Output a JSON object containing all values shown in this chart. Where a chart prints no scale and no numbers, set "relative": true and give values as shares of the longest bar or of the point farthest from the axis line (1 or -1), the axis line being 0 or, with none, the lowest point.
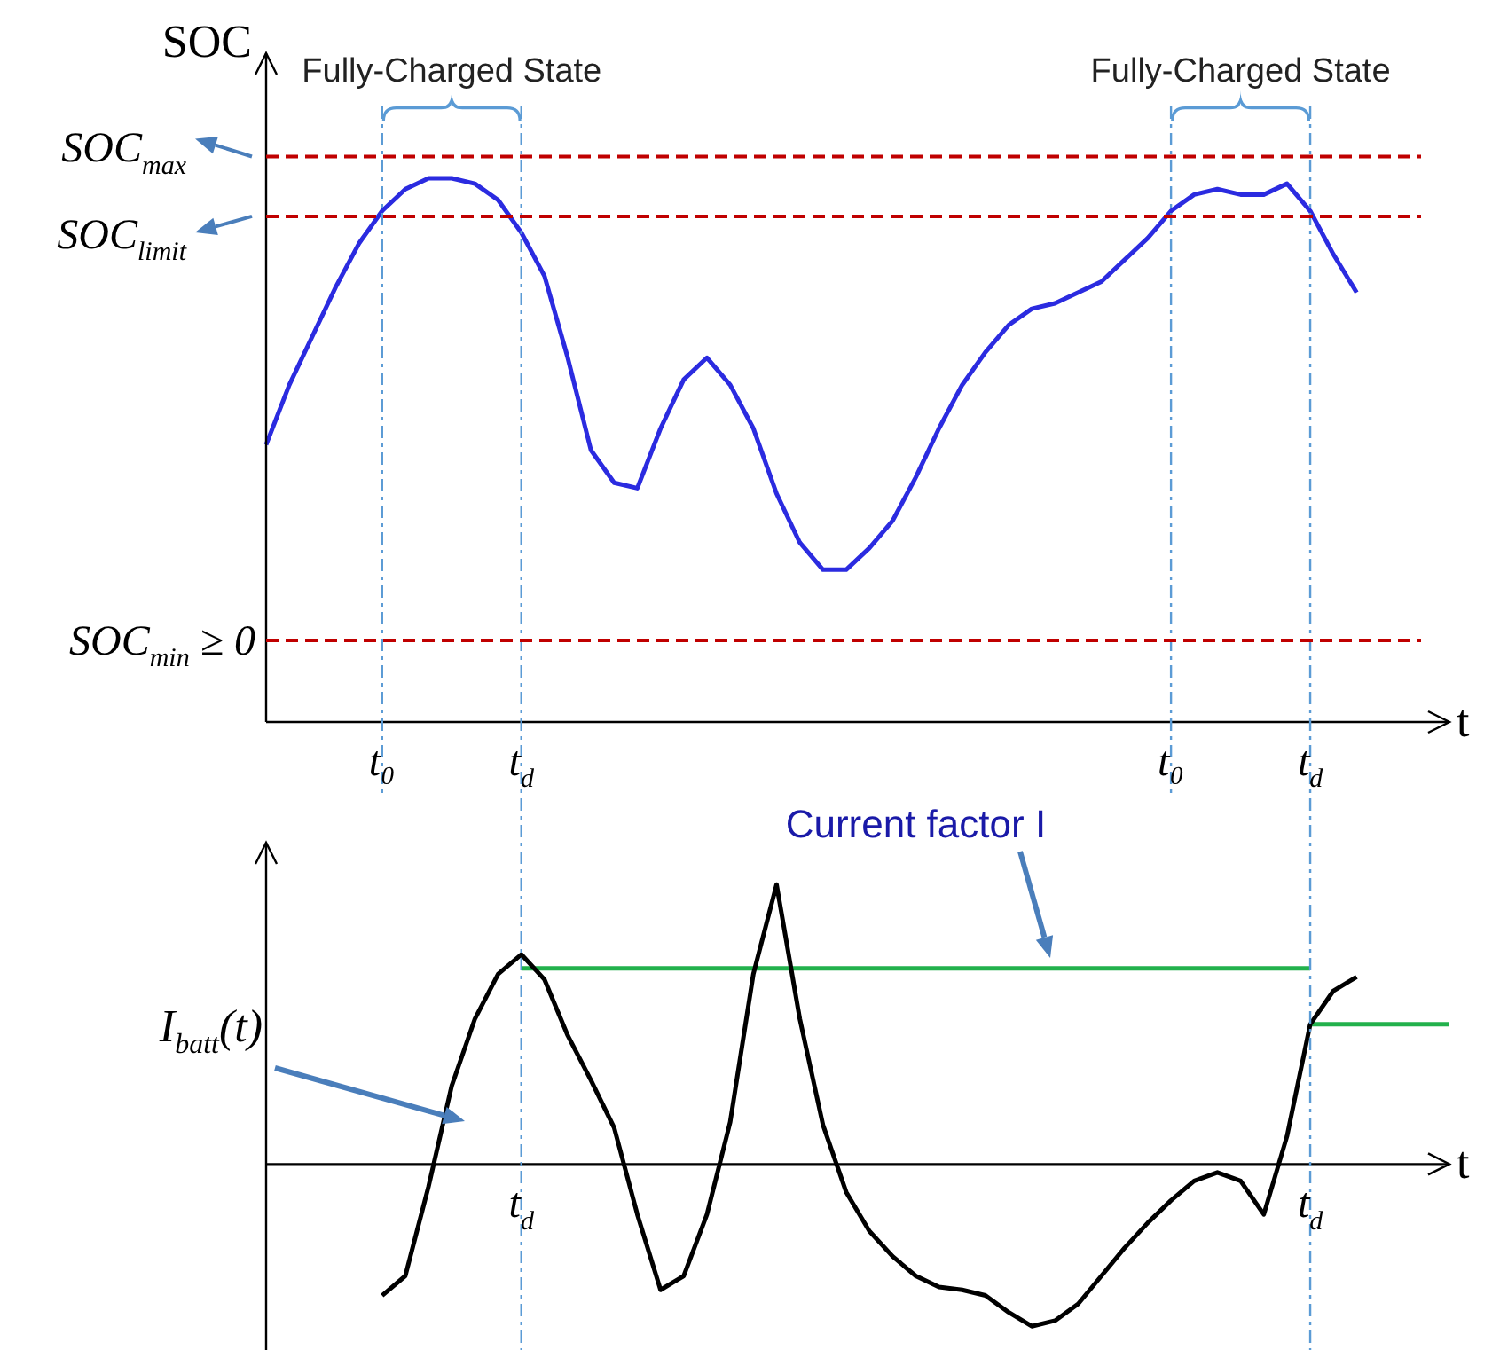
{
  "chart_data": [
    {
      "type": "line",
      "ylabel": "SOC",
      "xlabel": "t",
      "relative": true,
      "legend": false,
      "line_style": "solid",
      "categories": [
        null,
        null,
        null,
        null,
        null,
        "t₀",
        null,
        null,
        null,
        null,
        null,
        "t$_{d}$",
        null,
        null,
        null,
        null,
        null,
        null,
        null,
        null,
        null,
        null,
        null,
        null,
        null,
        null,
        null,
        null,
        null,
        null,
        null,
        null,
        null,
        null,
        null,
        null,
        null,
        null,
        null,
        "t₀",
        null,
        null,
        null,
        null,
        null,
        "t$_{d}$",
        null,
        null,
        null,
        null,
        null,
        null
      ],
      "series": [
        {
          "color": "#2b2be0",
          "values": [
            0.51,
            0.62,
            0.71,
            0.8,
            0.88,
            0.94,
            0.98,
            1.0,
            1.0,
            0.99,
            0.96,
            0.9,
            0.82,
            0.67,
            0.5,
            0.44,
            0.43,
            0.54,
            0.63,
            0.67,
            0.62,
            0.54,
            0.42,
            0.33,
            0.28,
            0.28,
            0.32,
            0.37,
            0.45,
            0.54,
            0.62,
            0.68,
            0.73,
            0.76,
            0.77,
            0.79,
            0.81,
            0.85,
            0.89,
            0.94,
            0.97,
            0.98,
            0.97,
            0.97,
            0.99,
            0.94,
            0.86,
            0.79,
            null,
            null,
            null,
            null
          ]
        }
      ],
      "ref_lines": [
        {
          "axis": "y",
          "value": 1.04,
          "label": "SOC$_{max}$",
          "color": "#c00000",
          "line_style": "dashed"
        },
        {
          "axis": "y",
          "value": 0.93,
          "label": "SOC$_{limit}$",
          "color": "#c00000",
          "line_style": "dashed"
        },
        {
          "axis": "y",
          "value": 0.15,
          "label": "SOC$_{min}$ ≥ 0",
          "color": "#c00000",
          "line_style": "dashed"
        }
      ],
      "grid": "x",
      "annotations": [
        "Fully-Charged State",
        "Fully-Charged State"
      ]
    },
    {
      "type": "line",
      "xlabel": "t",
      "relative": true,
      "legend": false,
      "line_style": "solid",
      "categories": [
        null,
        null,
        null,
        null,
        null,
        null,
        null,
        null,
        null,
        null,
        null,
        "t$_{d}$",
        null,
        null,
        null,
        null,
        null,
        null,
        null,
        null,
        null,
        null,
        null,
        null,
        null,
        null,
        null,
        null,
        null,
        null,
        null,
        null,
        null,
        null,
        null,
        null,
        null,
        null,
        null,
        null,
        null,
        null,
        null,
        null,
        null,
        "t$_{d}$",
        null,
        null,
        null,
        null,
        null,
        null
      ],
      "series": [
        {
          "name": "I$_{batt}$(t)",
          "color": "#000000",
          "values": [
            null,
            null,
            null,
            null,
            null,
            -0.47,
            -0.4,
            -0.08,
            0.28,
            0.52,
            0.68,
            0.75,
            0.66,
            0.46,
            0.3,
            0.13,
            -0.18,
            -0.45,
            -0.4,
            -0.18,
            0.15,
            0.68,
            1.0,
            0.52,
            0.14,
            -0.1,
            -0.24,
            -0.33,
            -0.4,
            -0.44,
            -0.45,
            -0.47,
            -0.53,
            -0.58,
            -0.56,
            -0.5,
            -0.4,
            -0.3,
            -0.21,
            -0.13,
            -0.06,
            -0.03,
            -0.06,
            -0.18,
            0.1,
            0.5,
            0.62,
            0.67,
            null,
            null,
            null,
            null
          ]
        },
        {
          "color": "#22b14c",
          "values": [
            null,
            null,
            null,
            null,
            null,
            null,
            null,
            null,
            null,
            null,
            null,
            0.7,
            0.7,
            0.7,
            0.7,
            0.7,
            0.7,
            0.7,
            0.7,
            0.7,
            0.7,
            0.7,
            0.7,
            0.7,
            0.7,
            0.7,
            0.7,
            0.7,
            0.7,
            0.7,
            0.7,
            0.7,
            0.7,
            0.7,
            0.7,
            0.7,
            0.7,
            0.7,
            0.7,
            0.7,
            0.7,
            0.7,
            0.7,
            0.7,
            0.7,
            0.7,
            null,
            null,
            null,
            null,
            null,
            null
          ]
        },
        {
          "color": "#22b14c",
          "values": [
            null,
            null,
            null,
            null,
            null,
            null,
            null,
            null,
            null,
            null,
            null,
            null,
            null,
            null,
            null,
            null,
            null,
            null,
            null,
            null,
            null,
            null,
            null,
            null,
            null,
            null,
            null,
            null,
            null,
            null,
            null,
            null,
            null,
            null,
            null,
            null,
            null,
            null,
            null,
            null,
            null,
            null,
            null,
            null,
            null,
            0.5,
            0.5,
            0.5,
            0.5,
            0.5,
            0.5,
            0.5
          ]
        }
      ],
      "grid": "x",
      "annotations": [
        "Current factor I"
      ]
    }
  ]
}
